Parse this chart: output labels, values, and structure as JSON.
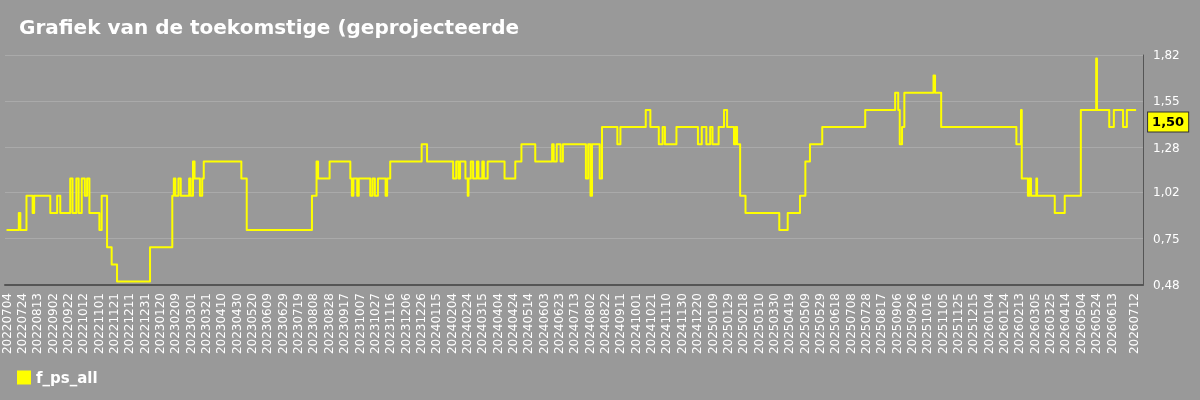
{
  "chart_data": {
    "type": "step",
    "title": "Grafiek van de toekomstige (geprojecteerde",
    "series": [
      {
        "name": "f_ps_all",
        "color": "#ffff00",
        "x": [
          "2022-07-04",
          "2022-07-20",
          "2022-07-22",
          "2022-07-30",
          "2022-08-07",
          "2022-08-09",
          "2022-08-30",
          "2022-09-08",
          "2022-09-12",
          "2022-09-25",
          "2022-09-28",
          "2022-10-03",
          "2022-10-06",
          "2022-10-10",
          "2022-10-14",
          "2022-10-17",
          "2022-10-20",
          "2022-11-02",
          "2022-11-05",
          "2022-11-12",
          "2022-11-18",
          "2022-11-25",
          "2023-01-07",
          "2023-02-05",
          "2023-02-07",
          "2023-02-09",
          "2023-02-13",
          "2023-02-16",
          "2023-02-27",
          "2023-03-01",
          "2023-03-04",
          "2023-03-06",
          "2023-03-13",
          "2023-03-16",
          "2023-03-18",
          "2023-05-06",
          "2023-05-13",
          "2023-08-06",
          "2023-08-12",
          "2023-08-14",
          "2023-08-29",
          "2023-09-25",
          "2023-09-27",
          "2023-09-29",
          "2023-10-04",
          "2023-10-06",
          "2023-10-21",
          "2023-10-24",
          "2023-10-27",
          "2023-10-31",
          "2023-11-10",
          "2023-11-12",
          "2023-11-16",
          "2023-12-27",
          "2024-01-03",
          "2024-02-06",
          "2024-02-10",
          "2024-02-13",
          "2024-02-15",
          "2024-02-22",
          "2024-02-25",
          "2024-02-26",
          "2024-02-29",
          "2024-03-03",
          "2024-03-08",
          "2024-03-10",
          "2024-03-15",
          "2024-03-17",
          "2024-03-22",
          "2024-04-13",
          "2024-04-27",
          "2024-05-05",
          "2024-05-23",
          "2024-06-14",
          "2024-06-16",
          "2024-06-20",
          "2024-06-25",
          "2024-06-28",
          "2024-07-28",
          "2024-07-31",
          "2024-08-03",
          "2024-08-05",
          "2024-08-15",
          "2024-08-18",
          "2024-09-07",
          "2024-09-11",
          "2024-10-14",
          "2024-10-20",
          "2024-10-31",
          "2024-11-05",
          "2024-11-08",
          "2024-11-23",
          "2024-12-21",
          "2024-12-26",
          "2025-01-01",
          "2025-01-06",
          "2025-01-09",
          "2025-01-17",
          "2025-01-24",
          "2025-01-28",
          "2025-02-06",
          "2025-02-08",
          "2025-02-10",
          "2025-02-14",
          "2025-02-21",
          "2025-04-06",
          "2025-04-17",
          "2025-05-03",
          "2025-05-10",
          "2025-05-16",
          "2025-06-01",
          "2025-07-27",
          "2025-09-04",
          "2025-09-08",
          "2025-09-10",
          "2025-09-13",
          "2025-09-16",
          "2025-10-24",
          "2025-10-26",
          "2025-11-03",
          "2026-02-09",
          "2026-02-15",
          "2026-02-16",
          "2026-02-24",
          "2026-02-26",
          "2026-02-28",
          "2026-03-07",
          "2026-03-08",
          "2026-03-31",
          "2026-04-13",
          "2026-05-04",
          "2026-05-24",
          "2026-05-25",
          "2026-06-10",
          "2026-06-16",
          "2026-06-28",
          "2026-07-03",
          "2026-07-15"
        ],
        "values": [
          0.8,
          0.9,
          0.8,
          1.0,
          0.9,
          1.0,
          0.9,
          1.0,
          0.9,
          1.1,
          0.9,
          1.1,
          0.9,
          1.1,
          1.0,
          1.1,
          0.9,
          0.8,
          1.0,
          0.7,
          0.6,
          0.5,
          0.7,
          1.0,
          1.1,
          1.0,
          1.1,
          1.0,
          1.1,
          1.0,
          1.2,
          1.1,
          1.0,
          1.1,
          1.2,
          1.1,
          0.8,
          1.0,
          1.2,
          1.1,
          1.2,
          1.1,
          1.0,
          1.1,
          1.0,
          1.1,
          1.0,
          1.1,
          1.0,
          1.1,
          1.0,
          1.1,
          1.2,
          1.3,
          1.2,
          1.1,
          1.2,
          1.1,
          1.2,
          1.1,
          1.0,
          1.1,
          1.2,
          1.1,
          1.2,
          1.1,
          1.2,
          1.1,
          1.2,
          1.1,
          1.2,
          1.3,
          1.2,
          1.3,
          1.2,
          1.3,
          1.2,
          1.3,
          1.1,
          1.3,
          1.0,
          1.3,
          1.1,
          1.4,
          1.3,
          1.4,
          1.5,
          1.4,
          1.3,
          1.4,
          1.3,
          1.4,
          1.3,
          1.4,
          1.3,
          1.4,
          1.3,
          1.4,
          1.5,
          1.4,
          1.3,
          1.4,
          1.3,
          1.0,
          0.9,
          0.8,
          0.9,
          1.0,
          1.2,
          1.3,
          1.4,
          1.5,
          1.6,
          1.5,
          1.3,
          1.4,
          1.6,
          1.7,
          1.6,
          1.4,
          1.3,
          1.5,
          1.1,
          1.0,
          1.1,
          1.0,
          1.1,
          1.0,
          0.9,
          1.0,
          1.5,
          1.8,
          1.5,
          1.4,
          1.5,
          1.4,
          1.5,
          1.5
        ]
      }
    ],
    "xlim": [
      "2022-07-02",
      "2026-07-24"
    ],
    "xticks": [
      {
        "value": "2022-07-04",
        "label": "20220704"
      },
      {
        "value": "2022-07-24",
        "label": "20220724"
      },
      {
        "value": "2022-08-13",
        "label": "20220813"
      },
      {
        "value": "2022-09-02",
        "label": "20220902"
      },
      {
        "value": "2022-09-22",
        "label": "20220922"
      },
      {
        "value": "2022-10-12",
        "label": "20221012"
      },
      {
        "value": "2022-11-01",
        "label": "20221101"
      },
      {
        "value": "2022-11-21",
        "label": "20221121"
      },
      {
        "value": "2022-12-11",
        "label": "20221211"
      },
      {
        "value": "2022-12-31",
        "label": "20221231"
      },
      {
        "value": "2023-01-20",
        "label": "20230120"
      },
      {
        "value": "2023-02-09",
        "label": "20230209"
      },
      {
        "value": "2023-03-01",
        "label": "20230301"
      },
      {
        "value": "2023-03-21",
        "label": "20230321"
      },
      {
        "value": "2023-04-10",
        "label": "20230410"
      },
      {
        "value": "2023-04-30",
        "label": "20230430"
      },
      {
        "value": "2023-05-20",
        "label": "20230520"
      },
      {
        "value": "2023-06-09",
        "label": "20230609"
      },
      {
        "value": "2023-06-29",
        "label": "20230629"
      },
      {
        "value": "2023-07-19",
        "label": "20230719"
      },
      {
        "value": "2023-08-08",
        "label": "20230808"
      },
      {
        "value": "2023-08-28",
        "label": "20230828"
      },
      {
        "value": "2023-09-17",
        "label": "20230917"
      },
      {
        "value": "2023-10-07",
        "label": "20231007"
      },
      {
        "value": "2023-10-27",
        "label": "20231027"
      },
      {
        "value": "2023-11-16",
        "label": "20231116"
      },
      {
        "value": "2023-12-06",
        "label": "20231206"
      },
      {
        "value": "2023-12-26",
        "label": "20231226"
      },
      {
        "value": "2024-01-15",
        "label": "20240115"
      },
      {
        "value": "2024-02-04",
        "label": "20240204"
      },
      {
        "value": "2024-02-24",
        "label": "20240224"
      },
      {
        "value": "2024-03-15",
        "label": "20240315"
      },
      {
        "value": "2024-04-04",
        "label": "20240404"
      },
      {
        "value": "2024-04-24",
        "label": "20240424"
      },
      {
        "value": "2024-05-14",
        "label": "20240514"
      },
      {
        "value": "2024-06-03",
        "label": "20240603"
      },
      {
        "value": "2024-06-23",
        "label": "20240623"
      },
      {
        "value": "2024-07-13",
        "label": "20240713"
      },
      {
        "value": "2024-08-02",
        "label": "20240802"
      },
      {
        "value": "2024-08-22",
        "label": "20240822"
      },
      {
        "value": "2024-09-11",
        "label": "20240911"
      },
      {
        "value": "2024-10-01",
        "label": "20241001"
      },
      {
        "value": "2024-10-21",
        "label": "20241021"
      },
      {
        "value": "2024-11-10",
        "label": "20241110"
      },
      {
        "value": "2024-11-30",
        "label": "20241130"
      },
      {
        "value": "2024-12-20",
        "label": "20241220"
      },
      {
        "value": "2025-01-09",
        "label": "20250109"
      },
      {
        "value": "2025-01-29",
        "label": "20250129"
      },
      {
        "value": "2025-02-18",
        "label": "20250218"
      },
      {
        "value": "2025-03-10",
        "label": "20250310"
      },
      {
        "value": "2025-03-30",
        "label": "20250330"
      },
      {
        "value": "2025-04-19",
        "label": "20250419"
      },
      {
        "value": "2025-05-09",
        "label": "20250509"
      },
      {
        "value": "2025-05-29",
        "label": "20250529"
      },
      {
        "value": "2025-06-18",
        "label": "20250618"
      },
      {
        "value": "2025-07-08",
        "label": "20250708"
      },
      {
        "value": "2025-07-28",
        "label": "20250728"
      },
      {
        "value": "2025-08-17",
        "label": "20250817"
      },
      {
        "value": "2025-09-06",
        "label": "20250906"
      },
      {
        "value": "2025-09-26",
        "label": "20250926"
      },
      {
        "value": "2025-10-16",
        "label": "20251016"
      },
      {
        "value": "2025-11-05",
        "label": "20251105"
      },
      {
        "value": "2025-11-25",
        "label": "20251125"
      },
      {
        "value": "2025-12-15",
        "label": "20251215"
      },
      {
        "value": "2026-01-04",
        "label": "20260104"
      },
      {
        "value": "2026-01-24",
        "label": "20260124"
      },
      {
        "value": "2026-02-13",
        "label": "20260213"
      },
      {
        "value": "2026-03-05",
        "label": "20260305"
      },
      {
        "value": "2026-03-25",
        "label": "20260325"
      },
      {
        "value": "2026-04-14",
        "label": "20260414"
      },
      {
        "value": "2026-05-04",
        "label": "20260504"
      },
      {
        "value": "2026-05-24",
        "label": "20260524"
      },
      {
        "value": "2026-06-13",
        "label": "20260613"
      },
      {
        "value": "2026-07-12",
        "label": "20260712"
      }
    ],
    "ylim": [
      0.48,
      1.82
    ],
    "yticks": [
      {
        "value": 0.48,
        "label": "0,48"
      },
      {
        "value": 0.75,
        "label": "0,75"
      },
      {
        "value": 1.02,
        "label": "1,02"
      },
      {
        "value": 1.28,
        "label": "1,28"
      },
      {
        "value": 1.55,
        "label": "1,55"
      },
      {
        "value": 1.82,
        "label": "1,82"
      }
    ],
    "annotations": [
      {
        "text": "1,50",
        "x": "2026-07-15",
        "y": 1.5
      }
    ],
    "grid": "y",
    "legend": "bottom left",
    "marker": "none"
  }
}
